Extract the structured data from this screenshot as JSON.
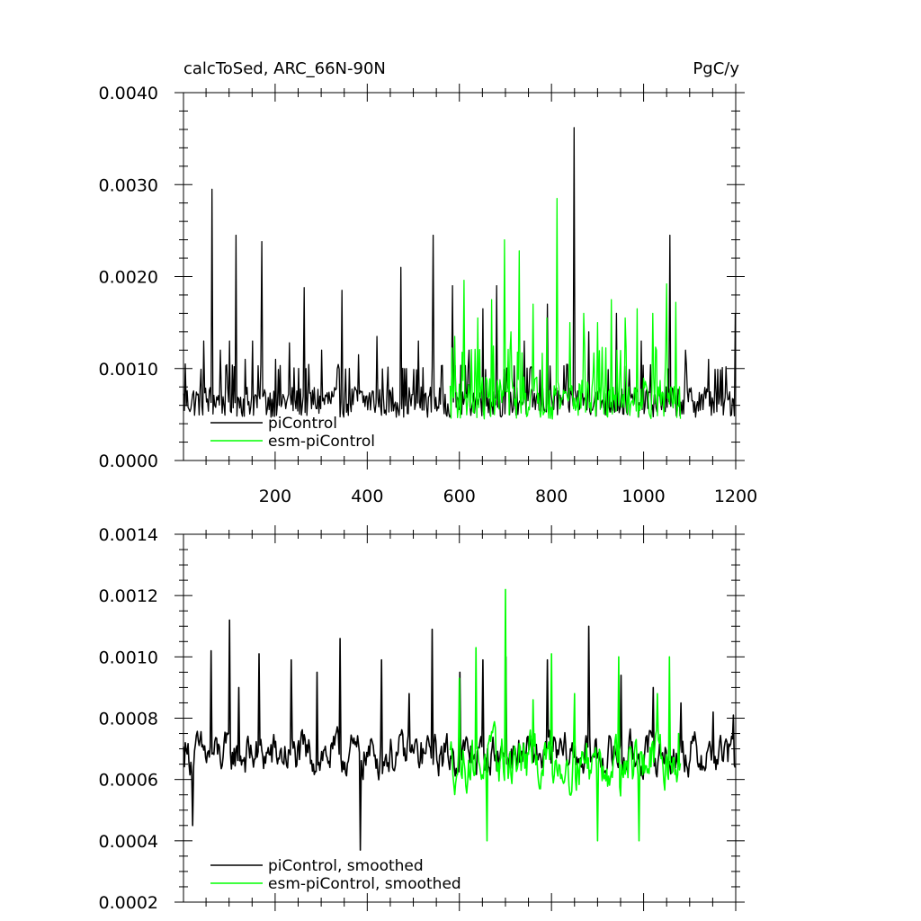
{
  "chart_data": [
    {
      "type": "line",
      "title": "calcToSed, ARC_66N-90N",
      "units": "PgC/y",
      "xlim": [
        1,
        1200
      ],
      "ylim": [
        0.0,
        0.004
      ],
      "xticks": [
        200,
        400,
        600,
        800,
        1000,
        1200
      ],
      "xtick_labels": [
        "200",
        "400",
        "600",
        "800",
        "1000",
        "1200"
      ],
      "yticks": [
        0.0,
        0.001,
        0.002,
        0.003,
        0.004
      ],
      "ytick_labels": [
        "0.0000",
        "0.0010",
        "0.0020",
        "0.0030",
        "0.0040"
      ],
      "grid": false,
      "legend_position": "bottom-left",
      "series": [
        {
          "name": "piControl",
          "color": "#000000",
          "x_start": 1,
          "x_end": 1200,
          "baseline": 0.00065,
          "noise": 0.00018,
          "floor": 0.0002,
          "peaks": [
            [
              5,
              0.00105
            ],
            [
              45,
              0.0013
            ],
            [
              62,
              0.00295
            ],
            [
              80,
              0.0012
            ],
            [
              100,
              0.0013
            ],
            [
              115,
              0.00245
            ],
            [
              135,
              0.0011
            ],
            [
              150,
              0.0013
            ],
            [
              170,
              0.00238
            ],
            [
              200,
              0.0011
            ],
            [
              230,
              0.00128
            ],
            [
              262,
              0.00188
            ],
            [
              300,
              0.0012
            ],
            [
              345,
              0.00185
            ],
            [
              380,
              0.00115
            ],
            [
              420,
              0.00135
            ],
            [
              472,
              0.0021
            ],
            [
              510,
              0.0013
            ],
            [
              542,
              0.00245
            ],
            [
              585,
              0.0019
            ],
            [
              620,
              0.0012
            ],
            [
              650,
              0.00165
            ],
            [
              680,
              0.0019
            ],
            [
              740,
              0.0013
            ],
            [
              790,
              0.0017
            ],
            [
              848,
              0.00362
            ],
            [
              880,
              0.0014
            ],
            [
              940,
              0.0016
            ],
            [
              995,
              0.0013
            ],
            [
              1057,
              0.00245
            ],
            [
              1090,
              0.0012
            ],
            [
              1140,
              0.0011
            ],
            [
              1198,
              0.0016
            ]
          ]
        },
        {
          "name": "esm-piControl",
          "color": "#00ff00",
          "x_start": 580,
          "x_end": 1080,
          "baseline": 0.0007,
          "noise": 0.00025,
          "floor": 0.00028,
          "peaks": [
            [
              590,
              0.00135
            ],
            [
              610,
              0.00196
            ],
            [
              640,
              0.00155
            ],
            [
              670,
              0.00175
            ],
            [
              697,
              0.0024
            ],
            [
              712,
              0.0014
            ],
            [
              730,
              0.00228
            ],
            [
              760,
              0.0017
            ],
            [
              790,
              0.00155
            ],
            [
              812,
              0.00285
            ],
            [
              840,
              0.0015
            ],
            [
              870,
              0.0016
            ],
            [
              900,
              0.0015
            ],
            [
              930,
              0.00175
            ],
            [
              960,
              0.00155
            ],
            [
              985,
              0.00165
            ],
            [
              1020,
              0.0016
            ],
            [
              1050,
              0.00192
            ],
            [
              1070,
              0.00172
            ]
          ]
        }
      ]
    },
    {
      "type": "line",
      "xlim": [
        1,
        1200
      ],
      "ylim": [
        0.0002,
        0.0014
      ],
      "xticks": [
        200,
        400,
        600,
        800,
        1000,
        1200
      ],
      "yticks": [
        0.0002,
        0.0004,
        0.0006,
        0.0008,
        0.001,
        0.0012,
        0.0014
      ],
      "ytick_labels": [
        "0.0002",
        "0.0004",
        "0.0006",
        "0.0008",
        "0.0010",
        "0.0012",
        "0.0014"
      ],
      "grid": false,
      "legend_position": "bottom-left",
      "series": [
        {
          "name": "piControl, smoothed",
          "color": "#000000",
          "x_start": 1,
          "x_end": 1200,
          "baseline": 0.00068,
          "noise": 0.00012,
          "floor": 0.00037,
          "peaks": [
            [
              5,
              0.00072
            ],
            [
              20,
              0.00045
            ],
            [
              60,
              0.00102
            ],
            [
              100,
              0.00112
            ],
            [
              120,
              0.0009
            ],
            [
              165,
              0.00101
            ],
            [
              235,
              0.00099
            ],
            [
              290,
              0.00095
            ],
            [
              340,
              0.00106
            ],
            [
              385,
              0.00037
            ],
            [
              430,
              0.00099
            ],
            [
              490,
              0.00088
            ],
            [
              540,
              0.00109
            ],
            [
              600,
              0.00095
            ],
            [
              650,
              0.00099
            ],
            [
              700,
              0.001
            ],
            [
              790,
              0.00099
            ],
            [
              880,
              0.0011
            ],
            [
              950,
              0.00094
            ],
            [
              1020,
              0.0009
            ],
            [
              1080,
              0.00085
            ],
            [
              1150,
              0.00082
            ],
            [
              1195,
              0.00081
            ]
          ]
        },
        {
          "name": "esm-piControl, smoothed",
          "color": "#00ff00",
          "x_start": 580,
          "x_end": 1080,
          "baseline": 0.00066,
          "noise": 0.00015,
          "floor": 0.0004,
          "peaks": [
            [
              600,
              0.00093
            ],
            [
              635,
              0.00103
            ],
            [
              660,
              0.0004
            ],
            [
              700,
              0.00122
            ],
            [
              760,
              0.00086
            ],
            [
              800,
              0.00101
            ],
            [
              850,
              0.00088
            ],
            [
              900,
              0.0004
            ],
            [
              945,
              0.001
            ],
            [
              990,
              0.0004
            ],
            [
              1030,
              0.00088
            ],
            [
              1055,
              0.001
            ],
            [
              1075,
              0.00075
            ]
          ]
        }
      ]
    }
  ]
}
